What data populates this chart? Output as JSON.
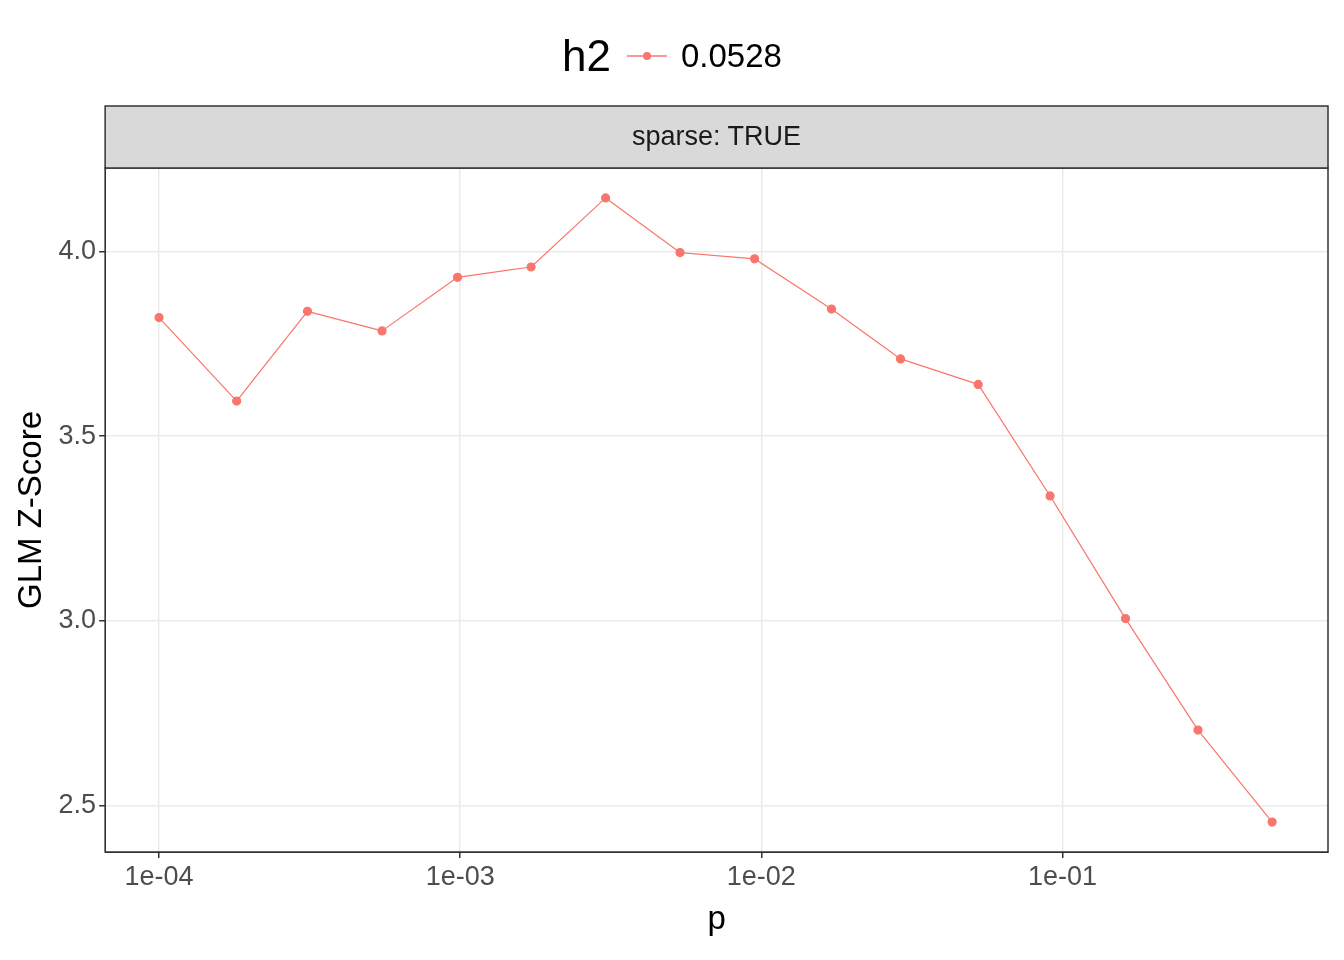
{
  "chart_data": {
    "type": "line",
    "subtitle": "sparse: TRUE",
    "xlabel": "p",
    "ylabel": "GLM Z-Score",
    "legend_title": "h2",
    "legend": "top",
    "grid": true,
    "marker": "circle",
    "line_style": "solid",
    "log": "x",
    "x": [
      0.0001,
      0.000181,
      0.000311,
      0.00055,
      0.00098,
      0.00172,
      0.00304,
      0.00537,
      0.0095,
      0.0171,
      0.029,
      0.0525,
      0.091,
      0.162,
      0.282,
      0.497
    ],
    "series": [
      {
        "name": "0.0528",
        "color": "#f8766d",
        "values": [
          3.821,
          3.595,
          3.838,
          3.785,
          3.93,
          3.958,
          4.145,
          3.997,
          3.98,
          3.844,
          3.709,
          3.64,
          3.338,
          3.006,
          2.704,
          2.455
        ]
      }
    ],
    "xlim": [
      6.62e-05,
      0.762
    ],
    "ylim": [
      2.374,
      4.226
    ],
    "xticks": [
      {
        "value": 0.0001,
        "label": "1e-04"
      },
      {
        "value": 0.001,
        "label": "1e-03"
      },
      {
        "value": 0.01,
        "label": "1e-02"
      },
      {
        "value": 0.1,
        "label": "1e-01"
      }
    ],
    "yticks": [
      {
        "value": 2.5,
        "label": "2.5"
      },
      {
        "value": 3,
        "label": "3.0"
      },
      {
        "value": 3.5,
        "label": "3.5"
      },
      {
        "value": 4,
        "label": "4.0"
      }
    ]
  }
}
